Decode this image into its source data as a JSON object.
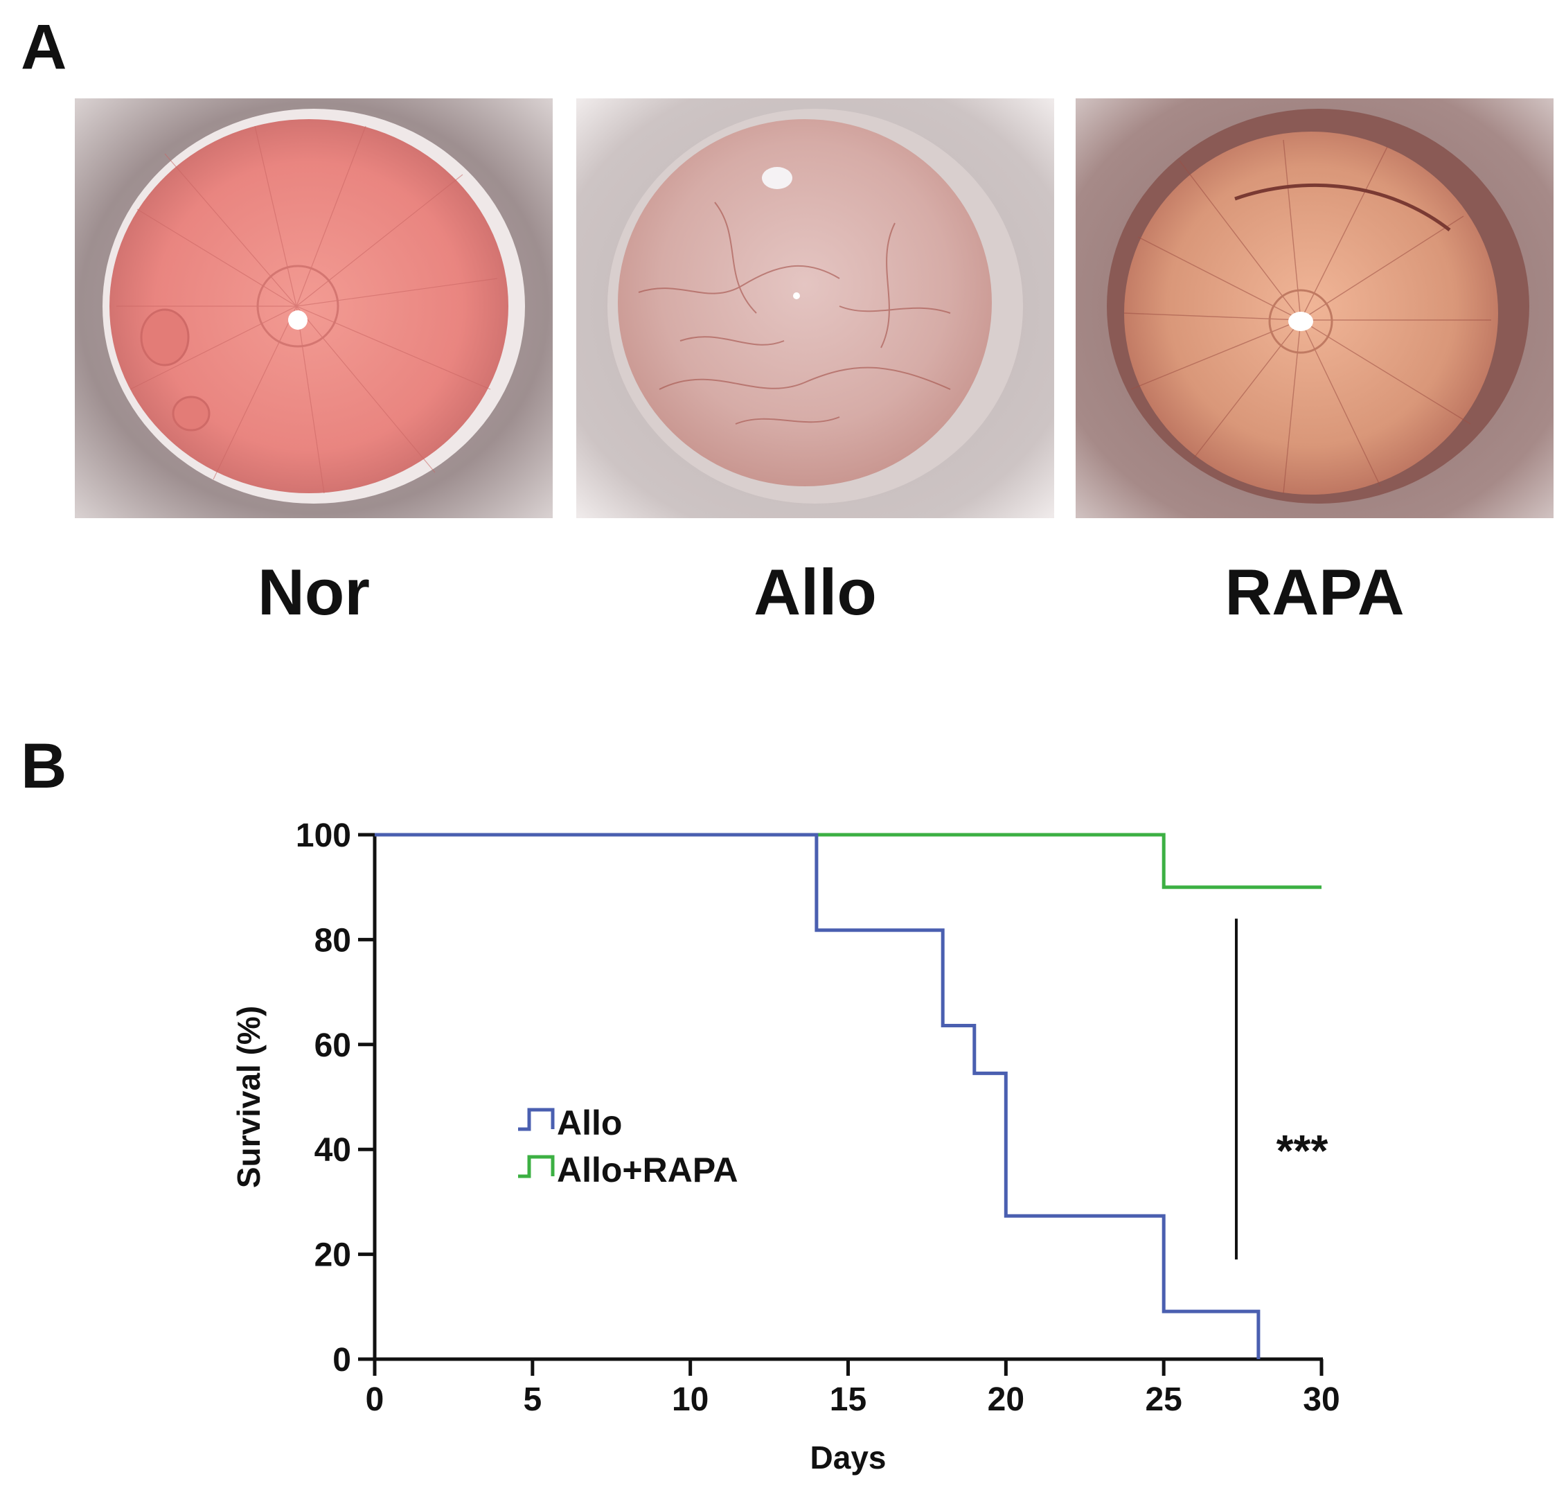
{
  "panels": {
    "a_letter": "A",
    "b_letter": "B"
  },
  "photos": [
    {
      "label": "Nor"
    },
    {
      "label": "Allo"
    },
    {
      "label": "RAPA"
    }
  ],
  "chart_data": {
    "type": "line",
    "subtype": "kaplan-meier step",
    "xlabel": "Days",
    "ylabel": "Survival (%)",
    "xlim": [
      0,
      30
    ],
    "ylim": [
      0,
      100
    ],
    "xticks": [
      0,
      5,
      10,
      15,
      20,
      25,
      30
    ],
    "yticks": [
      0,
      20,
      40,
      60,
      80,
      100
    ],
    "grid": false,
    "legend_position": "center-left",
    "series": [
      {
        "name": "Allo",
        "color": "#4a5fb0",
        "points": [
          [
            0,
            100
          ],
          [
            14,
            100
          ],
          [
            14,
            81.8
          ],
          [
            18,
            81.8
          ],
          [
            18,
            63.6
          ],
          [
            19,
            63.6
          ],
          [
            19,
            54.5
          ],
          [
            20,
            54.5
          ],
          [
            20,
            27.3
          ],
          [
            25,
            27.3
          ],
          [
            25,
            9.1
          ],
          [
            28,
            9.1
          ],
          [
            28,
            0
          ]
        ]
      },
      {
        "name": "Allo+RAPA",
        "color": "#3cb043",
        "points": [
          [
            0,
            100
          ],
          [
            25,
            100
          ],
          [
            25,
            90
          ],
          [
            30,
            90
          ]
        ]
      }
    ],
    "annotation": {
      "text": "***"
    }
  }
}
